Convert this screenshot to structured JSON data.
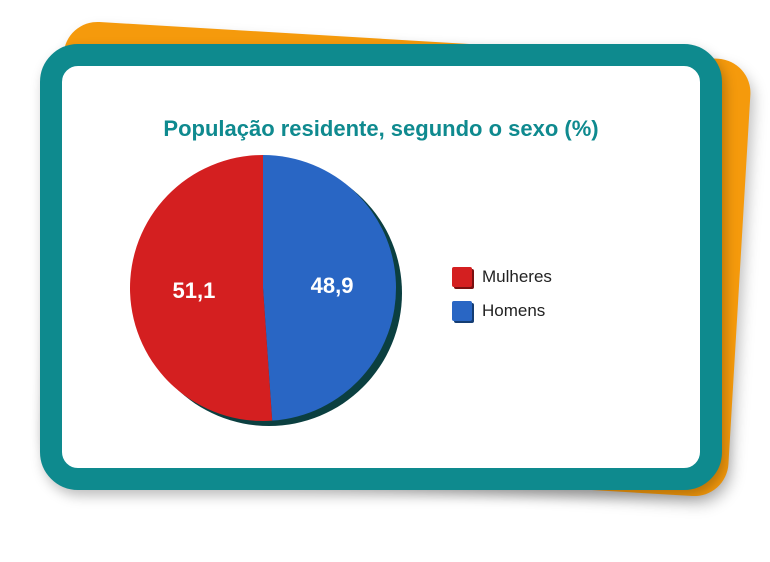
{
  "chart_data": {
    "type": "pie",
    "title": "População residente, segundo o sexo (%)",
    "slices": [
      {
        "label": "Mulheres",
        "value": 51.1,
        "display": "51,1",
        "color": "#d41f20"
      },
      {
        "label": "Homens",
        "value": 48.9,
        "display": "48,9",
        "color": "#2966c4"
      }
    ],
    "legend_position": "right",
    "legend": [
      {
        "label": "Mulheres",
        "color": "#d41f20"
      },
      {
        "label": "Homens",
        "color": "#2966c4"
      }
    ]
  },
  "colors": {
    "frame": "#0e8a8e",
    "back_card": "#f59a0c",
    "title": "#0f8a8f",
    "shadow": "#0b3f40"
  }
}
